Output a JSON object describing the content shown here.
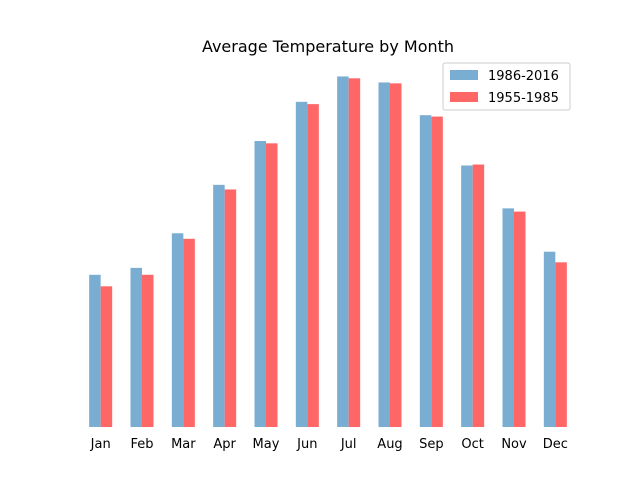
{
  "chart_data": {
    "type": "bar",
    "title": "Average Temperature by Month",
    "xlabel": "",
    "ylabel": "",
    "categories": [
      "Jan",
      "Feb",
      "Mar",
      "Apr",
      "May",
      "Jun",
      "Jul",
      "Aug",
      "Sep",
      "Oct",
      "Nov",
      "Dec"
    ],
    "series": [
      {
        "name": "1986-2016",
        "color": "#7aadd2",
        "values": [
          33.0,
          34.5,
          42.0,
          52.5,
          62.0,
          70.5,
          76.0,
          74.7,
          67.6,
          56.7,
          47.4,
          38.0
        ]
      },
      {
        "name": "1955-1985",
        "color": "#ff6666",
        "values": [
          30.5,
          33.0,
          40.8,
          51.5,
          61.5,
          70.0,
          75.6,
          74.5,
          67.3,
          56.9,
          46.7,
          35.7
        ]
      }
    ],
    "ylim": [
      0,
      80
    ],
    "grid": false,
    "legend_position": "top-right",
    "y_axis_visible": false
  }
}
